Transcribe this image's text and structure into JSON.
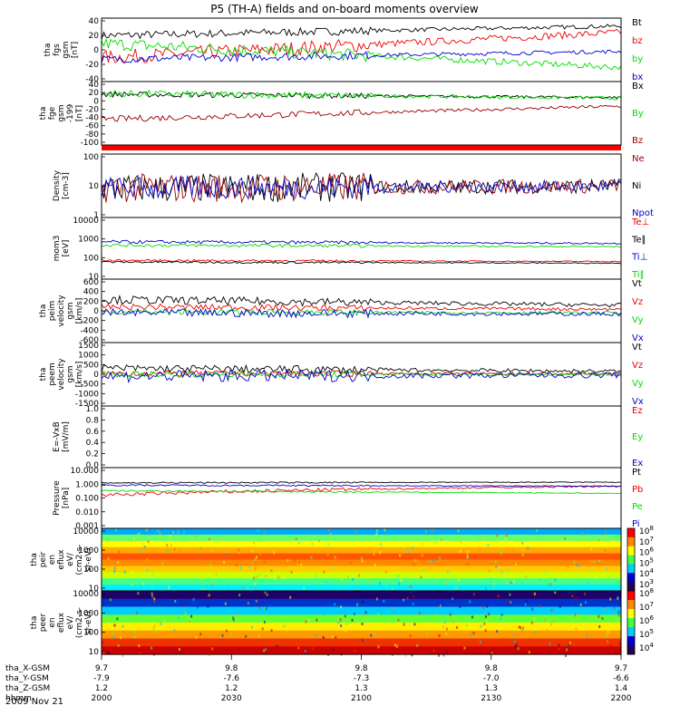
{
  "title": "P5 (TH-A) fields and on-board moments overview",
  "date_label": "2009 Nov 21",
  "colors": {
    "black": "#000000",
    "red": "#ee0000",
    "green": "#00dd00",
    "blue": "#0000cc",
    "darkred": "#990000"
  },
  "chart_data": {
    "type": "line",
    "x_ticks": [
      "2000",
      "2030",
      "2100",
      "2130",
      "2200"
    ],
    "x_label_rows": [
      {
        "label": "tha_X-GSM",
        "values": [
          "9.7",
          "9.8",
          "9.8",
          "9.8",
          "9.7"
        ]
      },
      {
        "label": "tha_Y-GSM",
        "values": [
          "-7.9",
          "-7.6",
          "-7.3",
          "-7.0",
          "-6.6"
        ]
      },
      {
        "label": "tha_Z-GSM",
        "values": [
          "1.2",
          "1.2",
          "1.3",
          "1.3",
          "1.4"
        ]
      },
      {
        "label": "hhmm",
        "values": [
          "2000",
          "2030",
          "2100",
          "2130",
          "2200"
        ]
      }
    ],
    "panels": [
      {
        "ylabel": [
          "tha",
          "fgs",
          "gsm",
          "[nT]"
        ],
        "ticks": [
          "40",
          "20",
          "0",
          "-20",
          "-40"
        ],
        "ylim": [
          -40,
          40
        ],
        "legend": [
          {
            "text": "Bt",
            "color": "black"
          },
          {
            "text": "bz",
            "color": "red"
          },
          {
            "text": "by",
            "color": "green"
          },
          {
            "text": "bx",
            "color": "blue"
          }
        ],
        "series": [
          {
            "name": "Bt",
            "start": 18,
            "end": 30,
            "noise": 5
          },
          {
            "name": "bz",
            "start": -10,
            "end": 22,
            "noise": 9
          },
          {
            "name": "by",
            "start": 8,
            "end": -22,
            "noise": 8
          },
          {
            "name": "bx",
            "start": -12,
            "end": -2,
            "noise": 5
          }
        ]
      },
      {
        "ylabel": [
          "tha",
          "fge",
          "gsm",
          "-199",
          "[nT]"
        ],
        "ticks": [
          "40",
          "20",
          "0",
          "-20",
          "-40",
          "-60",
          "-80",
          "-100"
        ],
        "ylim": [
          -110,
          50
        ],
        "legend": [
          {
            "text": "Bx",
            "color": "black"
          },
          {
            "text": "By",
            "color": "green"
          },
          {
            "text": "Bz",
            "color": "darkred"
          }
        ],
        "series": [
          {
            "name": "Bx",
            "start": 18,
            "end": 10,
            "noise": 7
          },
          {
            "name": "By",
            "start": 20,
            "end": 8,
            "noise": 9
          },
          {
            "name": "Bz",
            "start": -45,
            "end": -12,
            "noise": 8
          }
        ]
      },
      {
        "ylabel": [
          "Density",
          "[cm-3]"
        ],
        "ticks": [
          "100",
          "10",
          "1"
        ],
        "log": true,
        "ylim": [
          1,
          150
        ],
        "legend": [
          {
            "text": "Ne",
            "color": "darkred"
          },
          {
            "text": "Ni",
            "color": "black"
          },
          {
            "text": "Npot",
            "color": "blue"
          }
        ],
        "series": [
          {
            "name": "Ni",
            "start": 10,
            "end": 12,
            "noise": 0.5
          },
          {
            "name": "Ne",
            "start": 10,
            "end": 12,
            "noise": 0.5
          },
          {
            "name": "Npot",
            "start": 10,
            "end": 12,
            "noise": 0.4
          }
        ]
      },
      {
        "ylabel": [
          "mom3",
          "[eV]"
        ],
        "ticks": [
          "10000",
          "1000",
          "100",
          "10"
        ],
        "log": true,
        "ylim": [
          10,
          10000
        ],
        "legend": [
          {
            "text": "Te⊥",
            "color": "red"
          },
          {
            "text": "Te∥",
            "color": "black"
          },
          {
            "text": "Ti⊥",
            "color": "blue"
          },
          {
            "text": "Ti∥",
            "color": "green"
          }
        ],
        "series": [
          {
            "name": "Ti⊥",
            "start": 650,
            "end": 550,
            "noise": 0.08
          },
          {
            "name": "Ti∥",
            "start": 450,
            "end": 380,
            "noise": 0.08
          },
          {
            "name": "Te⊥",
            "start": 82,
            "end": 72,
            "noise": 0.05
          },
          {
            "name": "Te∥",
            "start": 68,
            "end": 60,
            "noise": 0.05
          }
        ]
      },
      {
        "ylabel": [
          "tha",
          "peim",
          "velocity",
          "gsm",
          "[km/s]"
        ],
        "ticks": [
          "600",
          "400",
          "200",
          "0",
          "-200",
          "-400",
          "-600"
        ],
        "ylim": [
          -620,
          620
        ],
        "legend": [
          {
            "text": "Vt",
            "color": "black"
          },
          {
            "text": "Vz",
            "color": "red"
          },
          {
            "text": "Vy",
            "color": "green"
          },
          {
            "text": "Vx",
            "color": "blue"
          }
        ],
        "series": [
          {
            "name": "Vt",
            "start": 220,
            "end": 110,
            "noise": 80
          },
          {
            "name": "Vz",
            "start": 80,
            "end": 30,
            "noise": 60
          },
          {
            "name": "Vy",
            "start": -20,
            "end": -40,
            "noise": 60
          },
          {
            "name": "Vx",
            "start": -40,
            "end": -60,
            "noise": 80
          }
        ]
      },
      {
        "ylabel": [
          "tha",
          "peem",
          "velocity",
          "gsm",
          "[km/s]"
        ],
        "ticks": [
          "1500",
          "1000",
          "500",
          "0",
          "-500",
          "-1000",
          "-1500"
        ],
        "ylim": [
          -1600,
          1600
        ],
        "legend": [
          {
            "text": "Vt",
            "color": "black"
          },
          {
            "text": "Vz",
            "color": "red"
          },
          {
            "text": "Vy",
            "color": "green"
          },
          {
            "text": "Vx",
            "color": "blue"
          }
        ],
        "series": [
          {
            "name": "Vt",
            "start": 300,
            "end": 150,
            "noise": 200
          },
          {
            "name": "Vz",
            "start": 50,
            "end": 20,
            "noise": 150
          },
          {
            "name": "Vy",
            "start": 0,
            "end": 0,
            "noise": 150
          },
          {
            "name": "Vx",
            "start": -100,
            "end": -40,
            "noise": 300
          }
        ]
      },
      {
        "ylabel": [
          "E=-VxB",
          "[mV/m]"
        ],
        "ticks": [
          "1.0",
          "0.8",
          "0.6",
          "0.4",
          "0.2",
          "0.0"
        ],
        "ylim": [
          0,
          1
        ],
        "legend": [
          {
            "text": "Ez",
            "color": "red"
          },
          {
            "text": "Ey",
            "color": "green"
          },
          {
            "text": "Ex",
            "color": "blue"
          }
        ],
        "series": []
      },
      {
        "ylabel": [
          "Pressure",
          "[nPa]"
        ],
        "ticks": [
          "10.000",
          "1.000",
          "0.100",
          "0.010",
          "0.001"
        ],
        "log": true,
        "ylim": [
          0.001,
          10
        ],
        "legend": [
          {
            "text": "Pt",
            "color": "black"
          },
          {
            "text": "Pb",
            "color": "red"
          },
          {
            "text": "Pe",
            "color": "green"
          },
          {
            "text": "Pi",
            "color": "blue"
          }
        ],
        "series": [
          {
            "name": "Pt",
            "start": 1.0,
            "end": 1.1,
            "noise": 0.05
          },
          {
            "name": "Pb",
            "start": 0.15,
            "end": 0.6,
            "noise": 0.12
          },
          {
            "name": "Pi",
            "start": 0.7,
            "end": 0.6,
            "noise": 0.05
          },
          {
            "name": "Pe",
            "start": 0.3,
            "end": 0.2,
            "noise": 0.05
          }
        ]
      },
      {
        "ylabel": [
          "tha",
          "peir",
          "en",
          "eflux",
          "eV/",
          "(cm2-s-",
          "sr-eV)"
        ],
        "ticks": [
          "10000",
          "1000",
          "100",
          "10"
        ],
        "spectrogram": true,
        "colorbar": [
          "10^8",
          "10^7",
          "10^6",
          "10^5",
          "10^4",
          "10^3"
        ]
      },
      {
        "ylabel": [
          "tha",
          "peer",
          "en",
          "eflux",
          "eV/",
          "(cm2-s-",
          "sr-eV)"
        ],
        "ticks": [
          "10000",
          "1000",
          "100",
          "10"
        ],
        "spectrogram": true,
        "colorbar": [
          "10^8",
          "10^7",
          "10^6",
          "10^5",
          "10^4"
        ]
      }
    ]
  }
}
